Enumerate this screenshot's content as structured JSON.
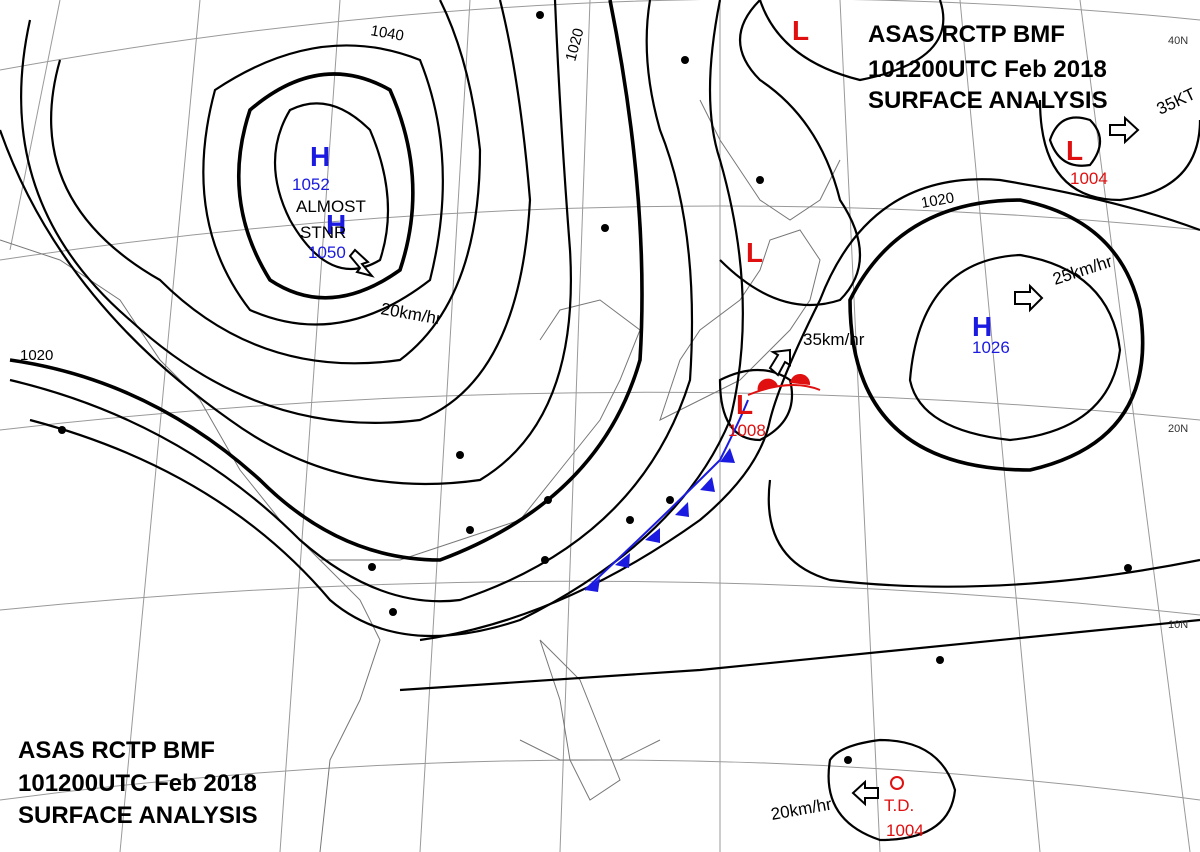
{
  "header_top": {
    "lines": [
      "ASAS   RCTP   BMF",
      "101200UTC   Feb   2018",
      "SURFACE  ANALYSIS"
    ]
  },
  "header_bottom": {
    "lines": [
      "ASAS   RCTP   BMF",
      "101200UTC   Feb   2018",
      "SURFACE  ANALYSIS"
    ]
  },
  "systems": [
    {
      "symbol": "H",
      "pressure": 1052
    },
    {
      "symbol": "H",
      "pressure": 1050,
      "note": [
        "ALMOST",
        "STNR"
      ],
      "motion": "20km/hr"
    },
    {
      "symbol": "L"
    },
    {
      "symbol": "L",
      "pressure": 1004,
      "motion": "35KT"
    },
    {
      "symbol": "L"
    },
    {
      "symbol": "H",
      "pressure": 1026,
      "motion": "25km/hr"
    },
    {
      "symbol": "L",
      "pressure": 1008,
      "motion": "35km/hr"
    },
    {
      "symbol": "T.D.",
      "pressure": 1004,
      "motion": "20km/hr"
    }
  ],
  "isobar_labels": [
    1040,
    1020,
    1020,
    1020
  ],
  "latitude_labels": [
    "40N",
    "20N",
    "10N"
  ]
}
